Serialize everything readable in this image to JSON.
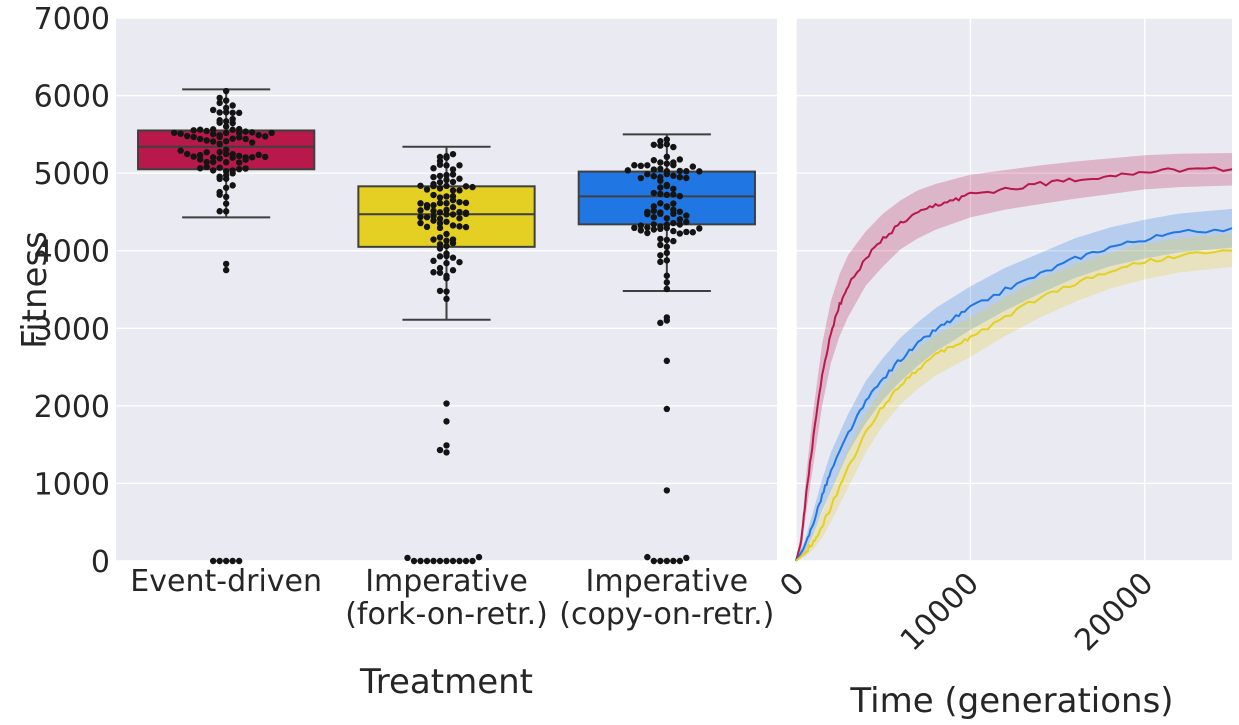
{
  "colors": {
    "background": "#eaeaf2",
    "grid": "#ffffff",
    "text": "#262626",
    "edge": "#3f3f3f",
    "event_driven": "#b8194a",
    "fork": "#e3d022",
    "copy": "#2077e3",
    "dots": "#141414"
  },
  "chart_data": [
    {
      "type": "box",
      "xlabel": "Treatment",
      "ylabel": "Fitness",
      "ylim": [
        0,
        7000
      ],
      "yticks": [
        "0",
        "1000",
        "2000",
        "3000",
        "4000",
        "5000",
        "6000",
        "7000"
      ],
      "grid": true,
      "categories": [
        {
          "lines": [
            "Event-driven"
          ]
        },
        {
          "lines": [
            "Imperative",
            "(fork-on-retr.)"
          ]
        },
        {
          "lines": [
            "Imperative",
            "(copy-on-retr.)"
          ]
        }
      ],
      "boxes": [
        {
          "q1": 5050,
          "median": 5340,
          "q3": 5550,
          "whisker_low": 4430,
          "whisker_high": 6080,
          "outliers": [
            3750,
            3830,
            0,
            0,
            0,
            0,
            0
          ],
          "color_key": "event_driven"
        },
        {
          "q1": 4050,
          "median": 4470,
          "q3": 4830,
          "whisker_low": 3110,
          "whisker_high": 5340,
          "outliers": [
            2030,
            1800,
            1490,
            1430,
            1400,
            0,
            0,
            0,
            0,
            0,
            0,
            0,
            0,
            0,
            0,
            50,
            40
          ],
          "color_key": "fork"
        },
        {
          "q1": 4340,
          "median": 4700,
          "q3": 5020,
          "whisker_low": 3480,
          "whisker_high": 5500,
          "outliers": [
            3140,
            3100,
            3070,
            2580,
            1960,
            910,
            0,
            0,
            0,
            0,
            0,
            50,
            40
          ],
          "color_key": "copy"
        }
      ]
    },
    {
      "type": "line",
      "xlabel": "Time (generations)",
      "xlim": [
        0,
        25000
      ],
      "ylim": [
        0,
        7000
      ],
      "xticks": [
        "0",
        "10000",
        "20000"
      ],
      "grid": true,
      "series": [
        {
          "color_key": "event_driven",
          "x": [
            0,
            300,
            600,
            1000,
            1500,
            2000,
            2500,
            3000,
            4000,
            5000,
            6000,
            7000,
            8000,
            9000,
            10000,
            12000,
            14000,
            16000,
            18000,
            20000,
            22000,
            25000
          ],
          "y": [
            0,
            250,
            900,
            1600,
            2400,
            2950,
            3300,
            3550,
            3900,
            4150,
            4350,
            4480,
            4580,
            4650,
            4720,
            4800,
            4860,
            4920,
            4970,
            5020,
            5040,
            5050
          ],
          "ci_low": [
            0,
            120,
            650,
            1250,
            2000,
            2550,
            2900,
            3150,
            3550,
            3800,
            4020,
            4160,
            4270,
            4350,
            4430,
            4530,
            4600,
            4670,
            4730,
            4790,
            4820,
            4840
          ],
          "ci_high": [
            0,
            380,
            1150,
            1950,
            2800,
            3350,
            3700,
            3950,
            4250,
            4480,
            4650,
            4780,
            4860,
            4920,
            4980,
            5040,
            5100,
            5150,
            5190,
            5230,
            5250,
            5260
          ]
        },
        {
          "color_key": "copy",
          "x": [
            0,
            500,
            1000,
            1500,
            2000,
            3000,
            4000,
            5000,
            6000,
            7000,
            8000,
            9000,
            10000,
            12000,
            14000,
            16000,
            18000,
            20000,
            22000,
            25000
          ],
          "y": [
            0,
            180,
            500,
            850,
            1150,
            1650,
            2050,
            2350,
            2600,
            2800,
            2980,
            3120,
            3260,
            3500,
            3700,
            3900,
            4050,
            4150,
            4230,
            4290
          ],
          "ci_low": [
            0,
            100,
            350,
            650,
            900,
            1400,
            1780,
            2080,
            2320,
            2520,
            2700,
            2840,
            2980,
            3230,
            3450,
            3650,
            3800,
            3900,
            3980,
            4040
          ],
          "ci_high": [
            0,
            260,
            650,
            1050,
            1400,
            1900,
            2320,
            2620,
            2880,
            3080,
            3260,
            3400,
            3540,
            3780,
            3970,
            4160,
            4300,
            4400,
            4480,
            4540
          ]
        },
        {
          "color_key": "fork",
          "x": [
            0,
            500,
            1000,
            1500,
            2000,
            3000,
            4000,
            5000,
            6000,
            7000,
            8000,
            9000,
            10000,
            12000,
            14000,
            16000,
            18000,
            20000,
            22000,
            25000
          ],
          "y": [
            0,
            100,
            250,
            450,
            700,
            1200,
            1650,
            2000,
            2280,
            2480,
            2650,
            2770,
            2880,
            3150,
            3400,
            3580,
            3740,
            3860,
            3940,
            4000
          ],
          "ci_low": [
            0,
            50,
            150,
            300,
            500,
            950,
            1400,
            1750,
            2020,
            2220,
            2390,
            2510,
            2630,
            2900,
            3140,
            3340,
            3510,
            3630,
            3720,
            3790
          ],
          "ci_high": [
            0,
            160,
            370,
            620,
            900,
            1450,
            1900,
            2250,
            2540,
            2740,
            2910,
            3030,
            3140,
            3400,
            3640,
            3820,
            3970,
            4090,
            4160,
            4220
          ]
        }
      ]
    }
  ]
}
